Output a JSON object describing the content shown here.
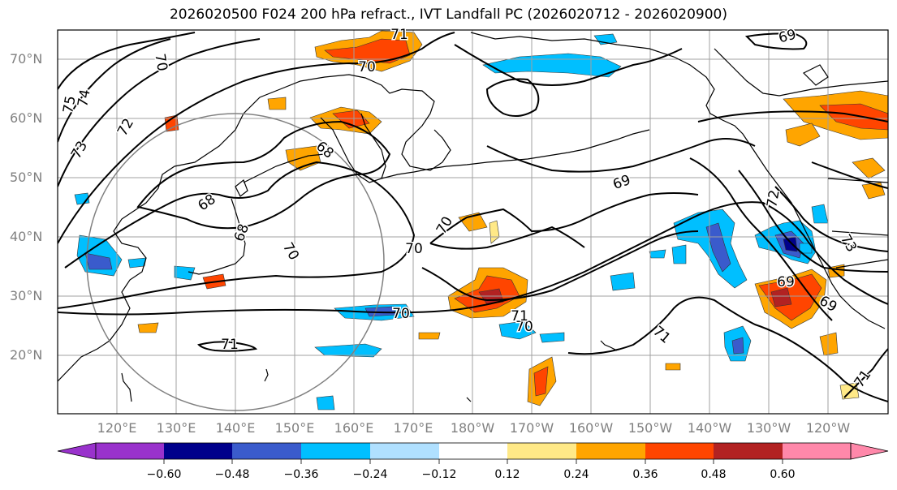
{
  "title": "2026020500 F024 200 hPa refract., IVT Landfall PC (2026020712 - 2026020900)",
  "lat_labels": [
    "70°N",
    "60°N",
    "50°N",
    "40°N",
    "30°N",
    "20°N"
  ],
  "lon_labels": [
    "120°E",
    "130°E",
    "140°E",
    "150°E",
    "160°E",
    "170°E",
    "180°W",
    "170°W",
    "160°W",
    "150°W",
    "140°W",
    "130°W",
    "120°W"
  ],
  "contour_labels": [
    "71",
    "70",
    "69",
    "75",
    "74",
    "73",
    "72",
    "68",
    "68",
    "68",
    "70",
    "70",
    "70",
    "70",
    "70",
    "71",
    "71",
    "69",
    "69",
    "69",
    "72",
    "73",
    "71",
    "70",
    "71"
  ],
  "colorbar": {
    "colors": [
      "#9932cc",
      "#00008b",
      "#3a5bcc",
      "#00bfff",
      "#b0e0ff",
      "#ffffff",
      "#ffe987",
      "#ffa500",
      "#ff4500",
      "#b22222",
      "#ff88aa"
    ],
    "tick_labels": [
      "−0.60",
      "−0.48",
      "−0.36",
      "−0.24",
      "−0.12",
      "0.12",
      "0.24",
      "0.36",
      "0.48",
      "0.60"
    ]
  },
  "map_colors": {
    "contour": "#000000",
    "grid": "#a0a0a0",
    "circle": "#808080",
    "coast": "#000000"
  }
}
